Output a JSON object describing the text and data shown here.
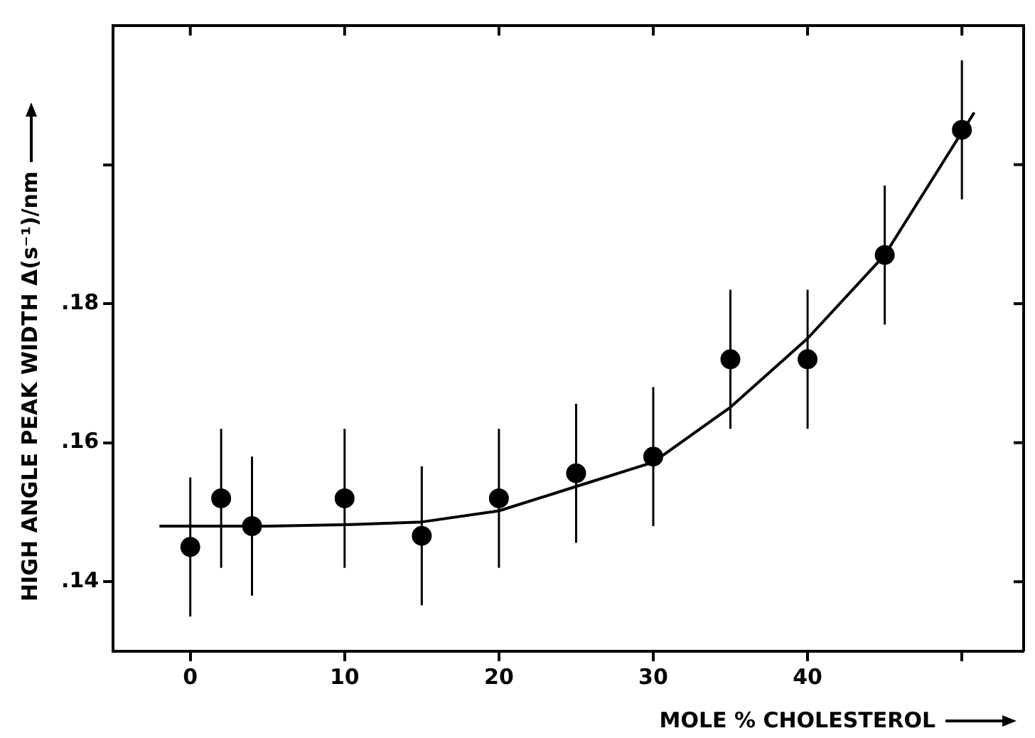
{
  "chart_data": {
    "type": "scatter",
    "xlabel": "MOLE % CHOLESTEROL",
    "ylabel": "HIGH ANGLE PEAK WIDTH Δ(s⁻¹)/nm",
    "xlim": [
      -5,
      54
    ],
    "xticks": [
      0,
      10,
      20,
      30,
      40,
      {
        "value": 50,
        "label": null
      }
    ],
    "ylim": [
      0.13,
      0.22
    ],
    "yticks": [
      {
        "value": 0.14,
        "label": ".14"
      },
      {
        "value": 0.16,
        "label": ".16"
      },
      {
        "value": 0.18,
        "label": ".18"
      },
      {
        "value": 0.2,
        "label": null
      }
    ],
    "marker": "circle",
    "series": [
      {
        "color": "#000000",
        "x": [
          0,
          2,
          4,
          10,
          15,
          20,
          25,
          30,
          35,
          40,
          45,
          50
        ],
        "values": [
          0.145,
          0.152,
          0.148,
          0.152,
          0.1466,
          0.152,
          0.1556,
          0.158,
          0.172,
          0.172,
          0.187,
          0.205
        ],
        "errors": [
          0.01,
          0.01,
          0.01,
          0.01,
          0.01,
          0.01,
          0.01,
          0.01,
          0.01,
          0.01,
          0.01,
          0.01
        ]
      },
      {
        "type": "line",
        "marker": "none",
        "color": "#000000",
        "x": [
          -2,
          0,
          5,
          10,
          15,
          20,
          25,
          30,
          35,
          40,
          45,
          50.8
        ],
        "values": [
          0.148,
          0.148,
          0.148,
          0.1482,
          0.1486,
          0.1502,
          0.1537,
          0.1572,
          0.1651,
          0.175,
          0.187,
          0.2075
        ]
      }
    ]
  }
}
